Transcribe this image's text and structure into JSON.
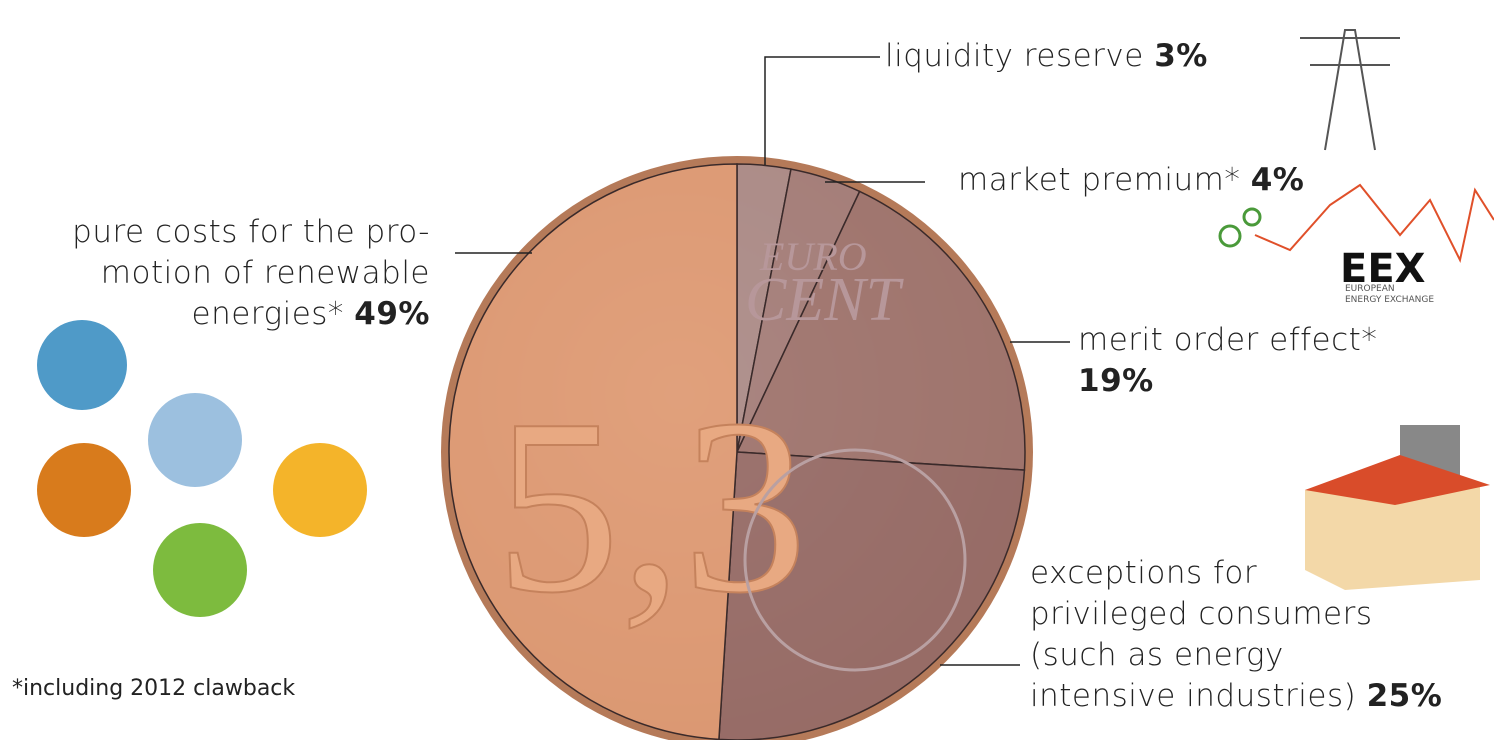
{
  "chart_data": {
    "type": "pie",
    "categories": [
      "liquidity reserve",
      "market premium*",
      "merit order effect*",
      "exceptions for\nprivileged consumers\n(such as energy\nintensive industries)",
      "pure costs for the pro-\nmotion of renewable\nenergies*"
    ],
    "values": [
      3,
      4,
      19,
      25,
      49
    ],
    "value_labels": [
      "3%",
      "4%",
      "19%",
      "25%",
      "49%"
    ],
    "colors": [
      "#a58a8c",
      "#9c7a7b",
      "#96706f",
      "#8d6667",
      "#dd9a75"
    ],
    "coin": {
      "value": "5,3",
      "line1": "EURO",
      "line2": "CENT"
    },
    "logo": {
      "name": "EEX",
      "subtitle": "EUROPEAN\nENERGY EXCHANGE"
    },
    "footnote": "*including 2012 clawback"
  }
}
